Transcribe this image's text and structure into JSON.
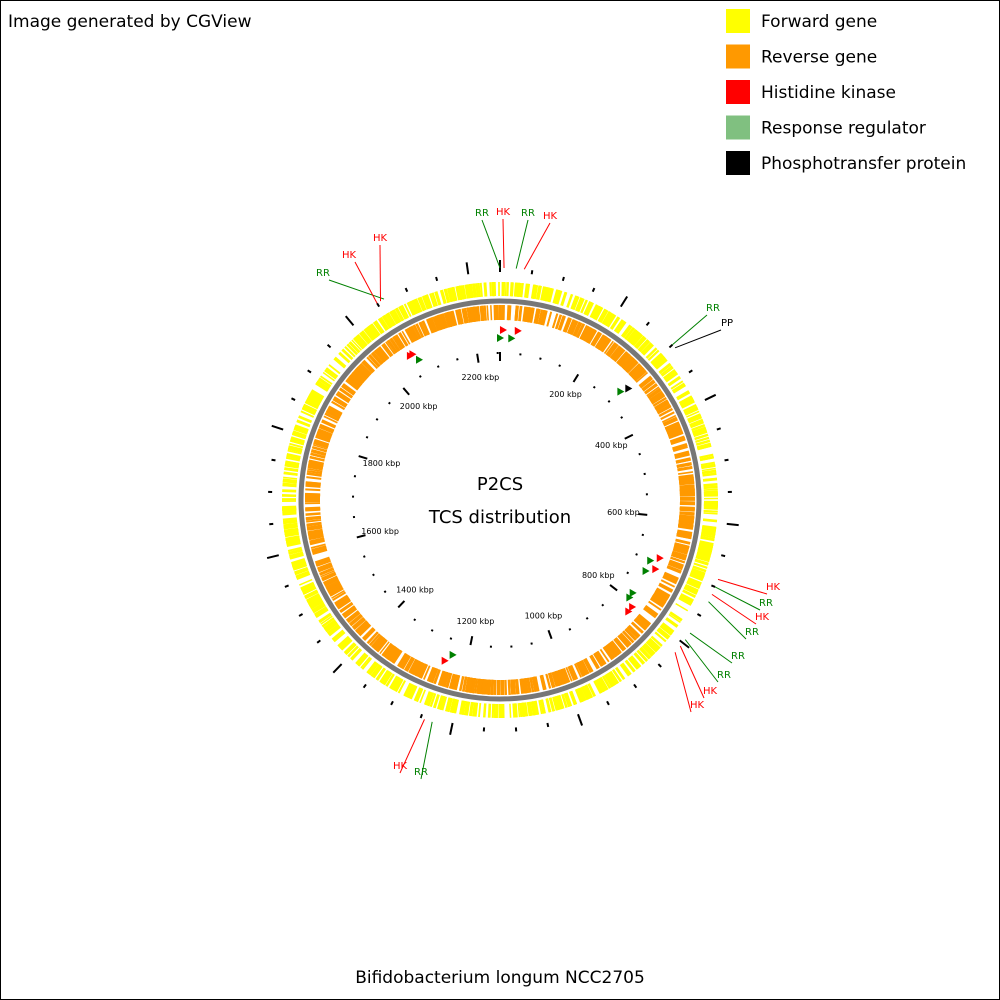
{
  "header": {
    "title": "Image generated by CGView"
  },
  "legend": {
    "items": [
      {
        "label": "Forward gene",
        "color": "#ffff00"
      },
      {
        "label": "Reverse gene",
        "color": "#ff9900"
      },
      {
        "label": "Histidine kinase",
        "color": "#ff0000"
      },
      {
        "label": "Response regulator",
        "color": "#80c080"
      },
      {
        "label": "Phosphotransfer protein",
        "color": "#000000"
      }
    ]
  },
  "center": {
    "title": "P2CS",
    "subtitle": "TCS distribution"
  },
  "footer": {
    "title": "Bifidobacterium longum NCC2705"
  },
  "ticks": [
    "200 kbp",
    "400 kbp",
    "600 kbp",
    "800 kbp",
    "1000 kbp",
    "1200 kbp",
    "1400 kbp",
    "1600 kbp",
    "1800 kbp",
    "2000 kbp",
    "2200 kbp"
  ],
  "features": [
    {
      "label": "RR",
      "color": "#008000"
    },
    {
      "label": "HK",
      "color": "#ff0000"
    },
    {
      "label": "RR",
      "color": "#008000"
    },
    {
      "label": "HK",
      "color": "#ff0000"
    },
    {
      "label": "RR",
      "color": "#008000"
    },
    {
      "label": "HK",
      "color": "#ff0000"
    },
    {
      "label": "HK",
      "color": "#ff0000"
    },
    {
      "label": "RR",
      "color": "#008000"
    },
    {
      "label": "PP",
      "color": "#000000"
    },
    {
      "label": "HK",
      "color": "#ff0000"
    },
    {
      "label": "RR",
      "color": "#008000"
    },
    {
      "label": "HK",
      "color": "#ff0000"
    },
    {
      "label": "RR",
      "color": "#008000"
    },
    {
      "label": "RR",
      "color": "#008000"
    },
    {
      "label": "RR",
      "color": "#008000"
    },
    {
      "label": "HK",
      "color": "#ff0000"
    },
    {
      "label": "HK",
      "color": "#ff0000"
    },
    {
      "label": "HK",
      "color": "#ff0000"
    },
    {
      "label": "RR",
      "color": "#008000"
    }
  ]
}
